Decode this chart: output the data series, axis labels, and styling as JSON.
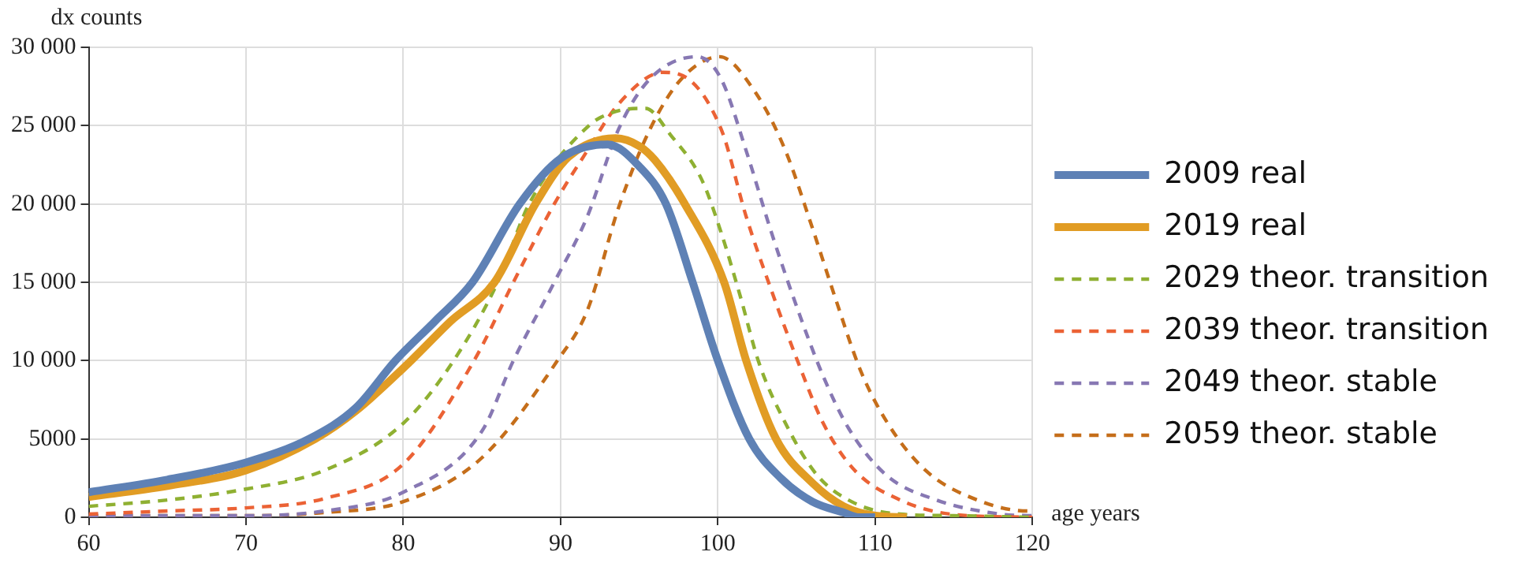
{
  "chart_data": {
    "type": "line",
    "xlabel": "age years",
    "ylabel": "dx counts",
    "xlim": [
      60,
      120
    ],
    "ylim": [
      0,
      30000
    ],
    "xticks": [
      60,
      70,
      80,
      90,
      100,
      110,
      120
    ],
    "yticks": [
      0,
      5000,
      {
        "value": 10000,
        "label": "10 000"
      },
      {
        "value": 15000,
        "label": "15 000"
      },
      {
        "value": 20000,
        "label": "20 000"
      },
      {
        "value": 25000,
        "label": "25 000"
      },
      {
        "value": 30000,
        "label": "30 000"
      }
    ],
    "grid": true,
    "legend": "right",
    "marker": "none",
    "series": [
      {
        "name": "2009 real",
        "color": "#5e81b5",
        "line_style": "solid",
        "x": [
          60,
          65,
          70,
          74,
          77,
          79.5,
          82,
          84.4,
          87.4,
          90,
          93,
          95,
          96.7,
          98.4,
          100,
          102,
          104,
          106,
          108,
          109,
          110
        ],
        "values": [
          1600,
          2400,
          3500,
          5000,
          7000,
          10000,
          12500,
          15000,
          20000,
          22900,
          23800,
          22400,
          20000,
          15000,
          10000,
          5000,
          2500,
          1000,
          300,
          0,
          0
        ]
      },
      {
        "name": "2019 real",
        "color": "#e19c24",
        "line_style": "solid",
        "x": [
          60,
          65,
          70,
          74.4,
          77,
          80.5,
          83,
          85.8,
          88.4,
          90.5,
          93.5,
          95,
          96,
          97.9,
          100.4,
          101.8,
          103.7,
          106,
          108,
          110,
          112
        ],
        "values": [
          1300,
          2000,
          3000,
          5000,
          6800,
          10000,
          12500,
          15000,
          20000,
          23000,
          24200,
          23700,
          22800,
          20000,
          15000,
          10000,
          5000,
          2200,
          700,
          100,
          0
        ]
      },
      {
        "name": "2029 theor. transition",
        "color": "#8fb032",
        "line_style": "dashed",
        "x": [
          60,
          65,
          70,
          75,
          80,
          83.2,
          86,
          88,
          91.8,
          93.5,
          95.4,
          97,
          99,
          100.2,
          101.4,
          102.6,
          104.3,
          106.3,
          108.7,
          111.6,
          115,
          120
        ],
        "values": [
          700,
          1100,
          1800,
          3000,
          6000,
          10000,
          15000,
          20000,
          25000,
          25900,
          26100,
          24400,
          21500,
          18200,
          14200,
          9900,
          6000,
          2700,
          900,
          200,
          100,
          0
        ]
      },
      {
        "name": "2039 theor. transition",
        "color": "#eb6235",
        "line_style": "dashed",
        "x": [
          60,
          65,
          70,
          75,
          80,
          84.5,
          87,
          89.6,
          91.7,
          93.7,
          96.5,
          97.5,
          100.2,
          101.8,
          103.4,
          105.1,
          106.7,
          108.7,
          111.6,
          114.8,
          120
        ],
        "values": [
          200,
          400,
          600,
          1200,
          3400,
          10000,
          15000,
          20000,
          23400,
          26400,
          28400,
          28300,
          24800,
          19200,
          14500,
          9900,
          6000,
          3000,
          1100,
          200,
          0
        ]
      },
      {
        "name": "2049 theor. stable",
        "color": "#8778b3",
        "line_style": "dashed",
        "x": [
          60,
          70,
          75,
          80,
          85,
          87,
          89.6,
          91.7,
          93.7,
          95.7,
          98.7,
          100.2,
          101.8,
          103.4,
          105.1,
          106.7,
          108.3,
          110.7,
          113.9,
          118,
          120
        ],
        "values": [
          100,
          100,
          400,
          1600,
          5500,
          10000,
          15000,
          19200,
          24800,
          28000,
          29400,
          28000,
          23400,
          18200,
          13200,
          9000,
          5700,
          2700,
          1100,
          200,
          100
        ]
      },
      {
        "name": "2059 theor. stable",
        "color": "#c56e1a",
        "line_style": "dashed",
        "x": [
          60,
          70,
          75,
          80,
          85,
          89.8,
          91.7,
          93.7,
          95.7,
          97.7,
          100.1,
          102.4,
          104.3,
          105.9,
          107.5,
          109.1,
          110.8,
          113.2,
          116.5,
          119.7,
          120
        ],
        "values": [
          100,
          100,
          300,
          1000,
          3800,
          10000,
          13200,
          19800,
          24800,
          28000,
          29400,
          27100,
          23400,
          18800,
          13900,
          9300,
          6000,
          3000,
          1100,
          400,
          400
        ]
      }
    ]
  }
}
